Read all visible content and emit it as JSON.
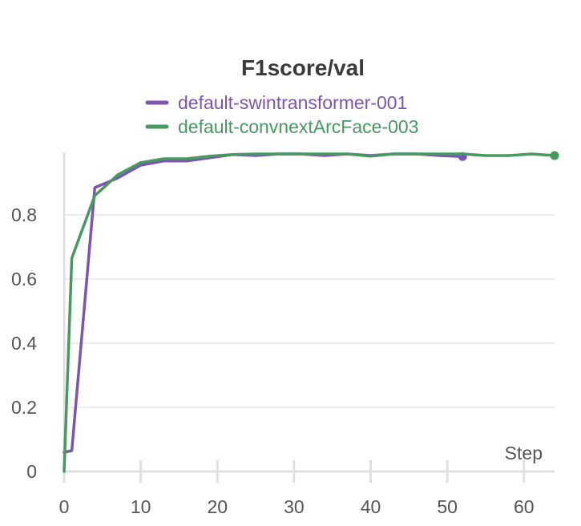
{
  "chart_data": {
    "type": "line",
    "title": "F1score/val",
    "xlabel": "Step",
    "ylabel": "",
    "xlim": [
      0,
      64
    ],
    "ylim": [
      0,
      1
    ],
    "x_ticks": [
      "0",
      "10",
      "20",
      "30",
      "40",
      "50",
      "60"
    ],
    "y_ticks": [
      "0",
      "0.2",
      "0.4",
      "0.6",
      "0.8"
    ],
    "grid": true,
    "legend_placement": "top-center",
    "series": [
      {
        "name": "default-swintransformer-001",
        "color": "#7d54b2",
        "x": [
          0,
          1,
          4,
          7,
          10,
          13,
          16,
          19,
          22,
          25,
          28,
          31,
          34,
          37,
          40,
          43,
          46,
          49,
          52
        ],
        "y": [
          0.06,
          0.065,
          0.885,
          0.915,
          0.955,
          0.968,
          0.968,
          0.978,
          0.988,
          0.985,
          0.99,
          0.99,
          0.985,
          0.99,
          0.985,
          0.99,
          0.99,
          0.985,
          0.982
        ]
      },
      {
        "name": "default-convnextArcFace-003",
        "color": "#479a5f",
        "x": [
          0,
          1,
          4,
          7,
          10,
          13,
          16,
          19,
          22,
          25,
          28,
          31,
          34,
          37,
          40,
          43,
          46,
          49,
          52,
          55,
          58,
          61,
          64
        ],
        "y": [
          0.0,
          0.665,
          0.86,
          0.925,
          0.963,
          0.975,
          0.975,
          0.983,
          0.988,
          0.99,
          0.99,
          0.99,
          0.99,
          0.99,
          0.983,
          0.99,
          0.99,
          0.99,
          0.99,
          0.985,
          0.985,
          0.99,
          0.985
        ]
      }
    ]
  }
}
